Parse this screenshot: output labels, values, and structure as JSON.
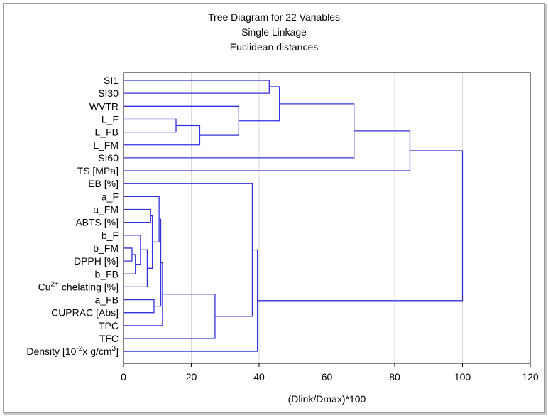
{
  "chart_data": {
    "type": "dendrogram",
    "title": "Tree Diagram for 22 Variables",
    "subtitle_lines": [
      "Single Linkage",
      "Euclidean distances"
    ],
    "xlabel": "(Dlink/Dmax)*100",
    "xlim": [
      0,
      120
    ],
    "xticks": [
      0,
      20,
      40,
      60,
      80,
      100,
      120
    ],
    "grid": true,
    "line_color": "#3333dd",
    "leaves": [
      {
        "id": "SI1",
        "text": "SI1"
      },
      {
        "id": "SI30",
        "text": "SI30"
      },
      {
        "id": "WVTR",
        "text": "WVTR"
      },
      {
        "id": "L_F",
        "text": "L_F"
      },
      {
        "id": "L_FB",
        "text": "L_FB"
      },
      {
        "id": "L_FM",
        "text": "L_FM"
      },
      {
        "id": "SI60",
        "text": "SI60"
      },
      {
        "id": "TS",
        "text": "TS [MPa]"
      },
      {
        "id": "EB",
        "text": "EB [%]"
      },
      {
        "id": "a_F",
        "text": "a_F"
      },
      {
        "id": "a_FM",
        "text": "a_FM"
      },
      {
        "id": "ABTS",
        "text": "ABTS [%]"
      },
      {
        "id": "b_F",
        "text": "b_F"
      },
      {
        "id": "b_FM",
        "text": "b_FM"
      },
      {
        "id": "DPPH",
        "text": "DPPH [%]"
      },
      {
        "id": "b_FB",
        "text": "b_FB"
      },
      {
        "id": "Cu",
        "text": "Cu",
        "sup": "2+",
        "text_after": " chelating [%]"
      },
      {
        "id": "a_FB",
        "text": "a_FB"
      },
      {
        "id": "CUPRAC",
        "text": "CUPRAC [Abs]"
      },
      {
        "id": "TPC",
        "text": "TPC"
      },
      {
        "id": "TFC",
        "text": "TFC"
      },
      {
        "id": "Density",
        "text": "Density [10",
        "sup": "-2",
        "text_after": "x g/cm",
        "sup2": "3",
        "text_after2": "]"
      }
    ],
    "merges": [
      {
        "id": "m1",
        "a": "b_FM",
        "b": "DPPH",
        "height": 2.5
      },
      {
        "id": "m2",
        "a": "m1",
        "b": "b_FB",
        "height": 3.5
      },
      {
        "id": "m3",
        "a": "b_F",
        "b": "m2",
        "height": 5
      },
      {
        "id": "m4",
        "a": "m3",
        "b": "Cu",
        "height": 7
      },
      {
        "id": "m5",
        "a": "a_FM",
        "b": "ABTS",
        "height": 8
      },
      {
        "id": "m6",
        "a": "m5",
        "b": "m4",
        "height": 8.5
      },
      {
        "id": "m7",
        "a": "a_FB",
        "b": "CUPRAC",
        "height": 9
      },
      {
        "id": "m8",
        "a": "a_F",
        "b": "m6",
        "height": 10.5
      },
      {
        "id": "m9",
        "a": "m8",
        "b": "m7",
        "height": 11
      },
      {
        "id": "m10",
        "a": "m9",
        "b": "TPC",
        "height": 11.5
      },
      {
        "id": "m11",
        "a": "L_F",
        "b": "L_FB",
        "height": 15.5
      },
      {
        "id": "m12",
        "a": "m11",
        "b": "L_FM",
        "height": 22.5
      },
      {
        "id": "m13",
        "a": "m10",
        "b": "TFC",
        "height": 27
      },
      {
        "id": "m14",
        "a": "WVTR",
        "b": "m12",
        "height": 34
      },
      {
        "id": "m15",
        "a": "EB",
        "b": "m13",
        "height": 38
      },
      {
        "id": "m16",
        "a": "m15",
        "b": "Density",
        "height": 39.5
      },
      {
        "id": "m17",
        "a": "SI1",
        "b": "SI30",
        "height": 43
      },
      {
        "id": "m18",
        "a": "m17",
        "b": "m14",
        "height": 46
      },
      {
        "id": "m19",
        "a": "m18",
        "b": "SI60",
        "height": 68
      },
      {
        "id": "m20",
        "a": "m19",
        "b": "TS",
        "height": 84.5
      },
      {
        "id": "m21",
        "a": "m20",
        "b": "m16",
        "height": 100
      }
    ]
  }
}
